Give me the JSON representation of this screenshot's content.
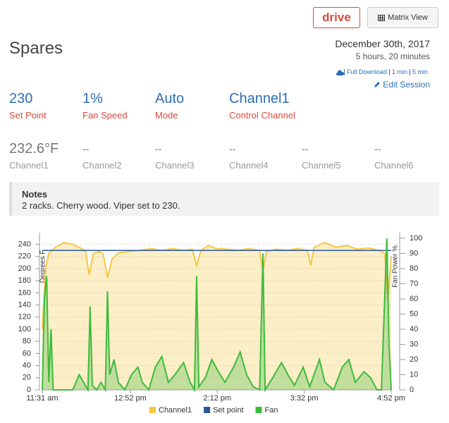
{
  "header": {
    "drive_button": "drive",
    "matrix_button": "Matrix View",
    "title": "Spares",
    "date": "December 30th, 2017",
    "duration": "5 hours, 20 minutes",
    "links": [
      "Full Download",
      "1 min",
      "5 min"
    ],
    "edit": "Edit Session"
  },
  "stats": [
    {
      "value": "230",
      "label": "Set Point"
    },
    {
      "value": "1%",
      "label": "Fan Speed"
    },
    {
      "value": "Auto",
      "label": "Mode"
    },
    {
      "value": "Channel1",
      "label": "Control Channel"
    }
  ],
  "channels": [
    {
      "value": "232.6°F",
      "label": "Channel1"
    },
    {
      "value": "--",
      "label": "Channel2"
    },
    {
      "value": "--",
      "label": "Channel3"
    },
    {
      "value": "--",
      "label": "Channel4"
    },
    {
      "value": "--",
      "label": "Channel5"
    },
    {
      "value": "--",
      "label": "Channel6"
    }
  ],
  "notes": {
    "title": "Notes",
    "text": "2 racks. Cherry wood. Viper set to 230."
  },
  "chart_data": {
    "type": "area",
    "y_label": "Degrees F",
    "y2_label": "Fan Power %",
    "xlim": [
      0,
      321
    ],
    "xticks": [
      {
        "value": 0,
        "label": "11:31 am"
      },
      {
        "value": 81,
        "label": "12:52 pm"
      },
      {
        "value": 161,
        "label": "2:12 pm"
      },
      {
        "value": 241,
        "label": "3:32 pm"
      },
      {
        "value": 321,
        "label": "4:52 pm"
      }
    ],
    "ylim": [
      0,
      250
    ],
    "yticks": [
      0,
      20,
      40,
      60,
      80,
      100,
      120,
      140,
      160,
      180,
      200,
      220,
      240
    ],
    "y2lim": [
      0,
      100
    ],
    "y2ticks": [
      0,
      10,
      20,
      30,
      40,
      50,
      60,
      70,
      80,
      90,
      100
    ],
    "grid": true,
    "series": [
      {
        "name": "Channel1",
        "color": "#f6c644",
        "fill": true,
        "x": [
          0,
          3,
          6,
          12,
          20,
          28,
          36,
          40,
          43,
          47,
          52,
          56,
          60,
          64,
          70,
          80,
          90,
          100,
          110,
          120,
          130,
          138,
          142,
          146,
          153,
          160,
          170,
          180,
          190,
          200,
          203,
          206,
          215,
          225,
          235,
          244,
          247,
          250,
          260,
          270,
          280,
          290,
          300,
          310,
          315,
          318,
          321
        ],
        "values": [
          100,
          200,
          225,
          235,
          243,
          240,
          233,
          228,
          190,
          225,
          228,
          225,
          185,
          215,
          226,
          228,
          230,
          233,
          230,
          233,
          230,
          232,
          205,
          230,
          238,
          233,
          232,
          230,
          233,
          230,
          195,
          228,
          232,
          230,
          233,
          230,
          205,
          235,
          243,
          235,
          238,
          232,
          234,
          230,
          225,
          150,
          220
        ]
      },
      {
        "name": "Set point",
        "color": "#2b5797",
        "fill": false,
        "x": [
          0,
          321
        ],
        "values": [
          230,
          230
        ]
      },
      {
        "name": "Fan",
        "color": "#3dbb3d",
        "fill": true,
        "axis": "y2",
        "x": [
          0,
          2,
          4,
          6,
          8,
          10,
          20,
          28,
          34,
          38,
          42,
          44,
          46,
          50,
          54,
          58,
          60,
          62,
          66,
          70,
          76,
          82,
          88,
          92,
          98,
          104,
          110,
          116,
          122,
          130,
          136,
          140,
          142,
          144,
          150,
          156,
          162,
          168,
          176,
          182,
          188,
          194,
          200,
          203,
          205,
          212,
          220,
          226,
          232,
          240,
          246,
          250,
          255,
          260,
          268,
          276,
          282,
          288,
          296,
          302,
          308,
          312,
          317,
          319,
          321
        ],
        "values": [
          0,
          60,
          75,
          5,
          40,
          0,
          0,
          0,
          10,
          5,
          0,
          55,
          3,
          0,
          5,
          0,
          65,
          10,
          20,
          5,
          0,
          10,
          15,
          5,
          0,
          15,
          22,
          5,
          10,
          18,
          5,
          0,
          75,
          2,
          8,
          20,
          12,
          5,
          15,
          25,
          10,
          2,
          0,
          90,
          0,
          8,
          18,
          10,
          3,
          15,
          2,
          10,
          20,
          5,
          0,
          15,
          20,
          5,
          12,
          8,
          0,
          0,
          100,
          30,
          0
        ]
      }
    ]
  }
}
